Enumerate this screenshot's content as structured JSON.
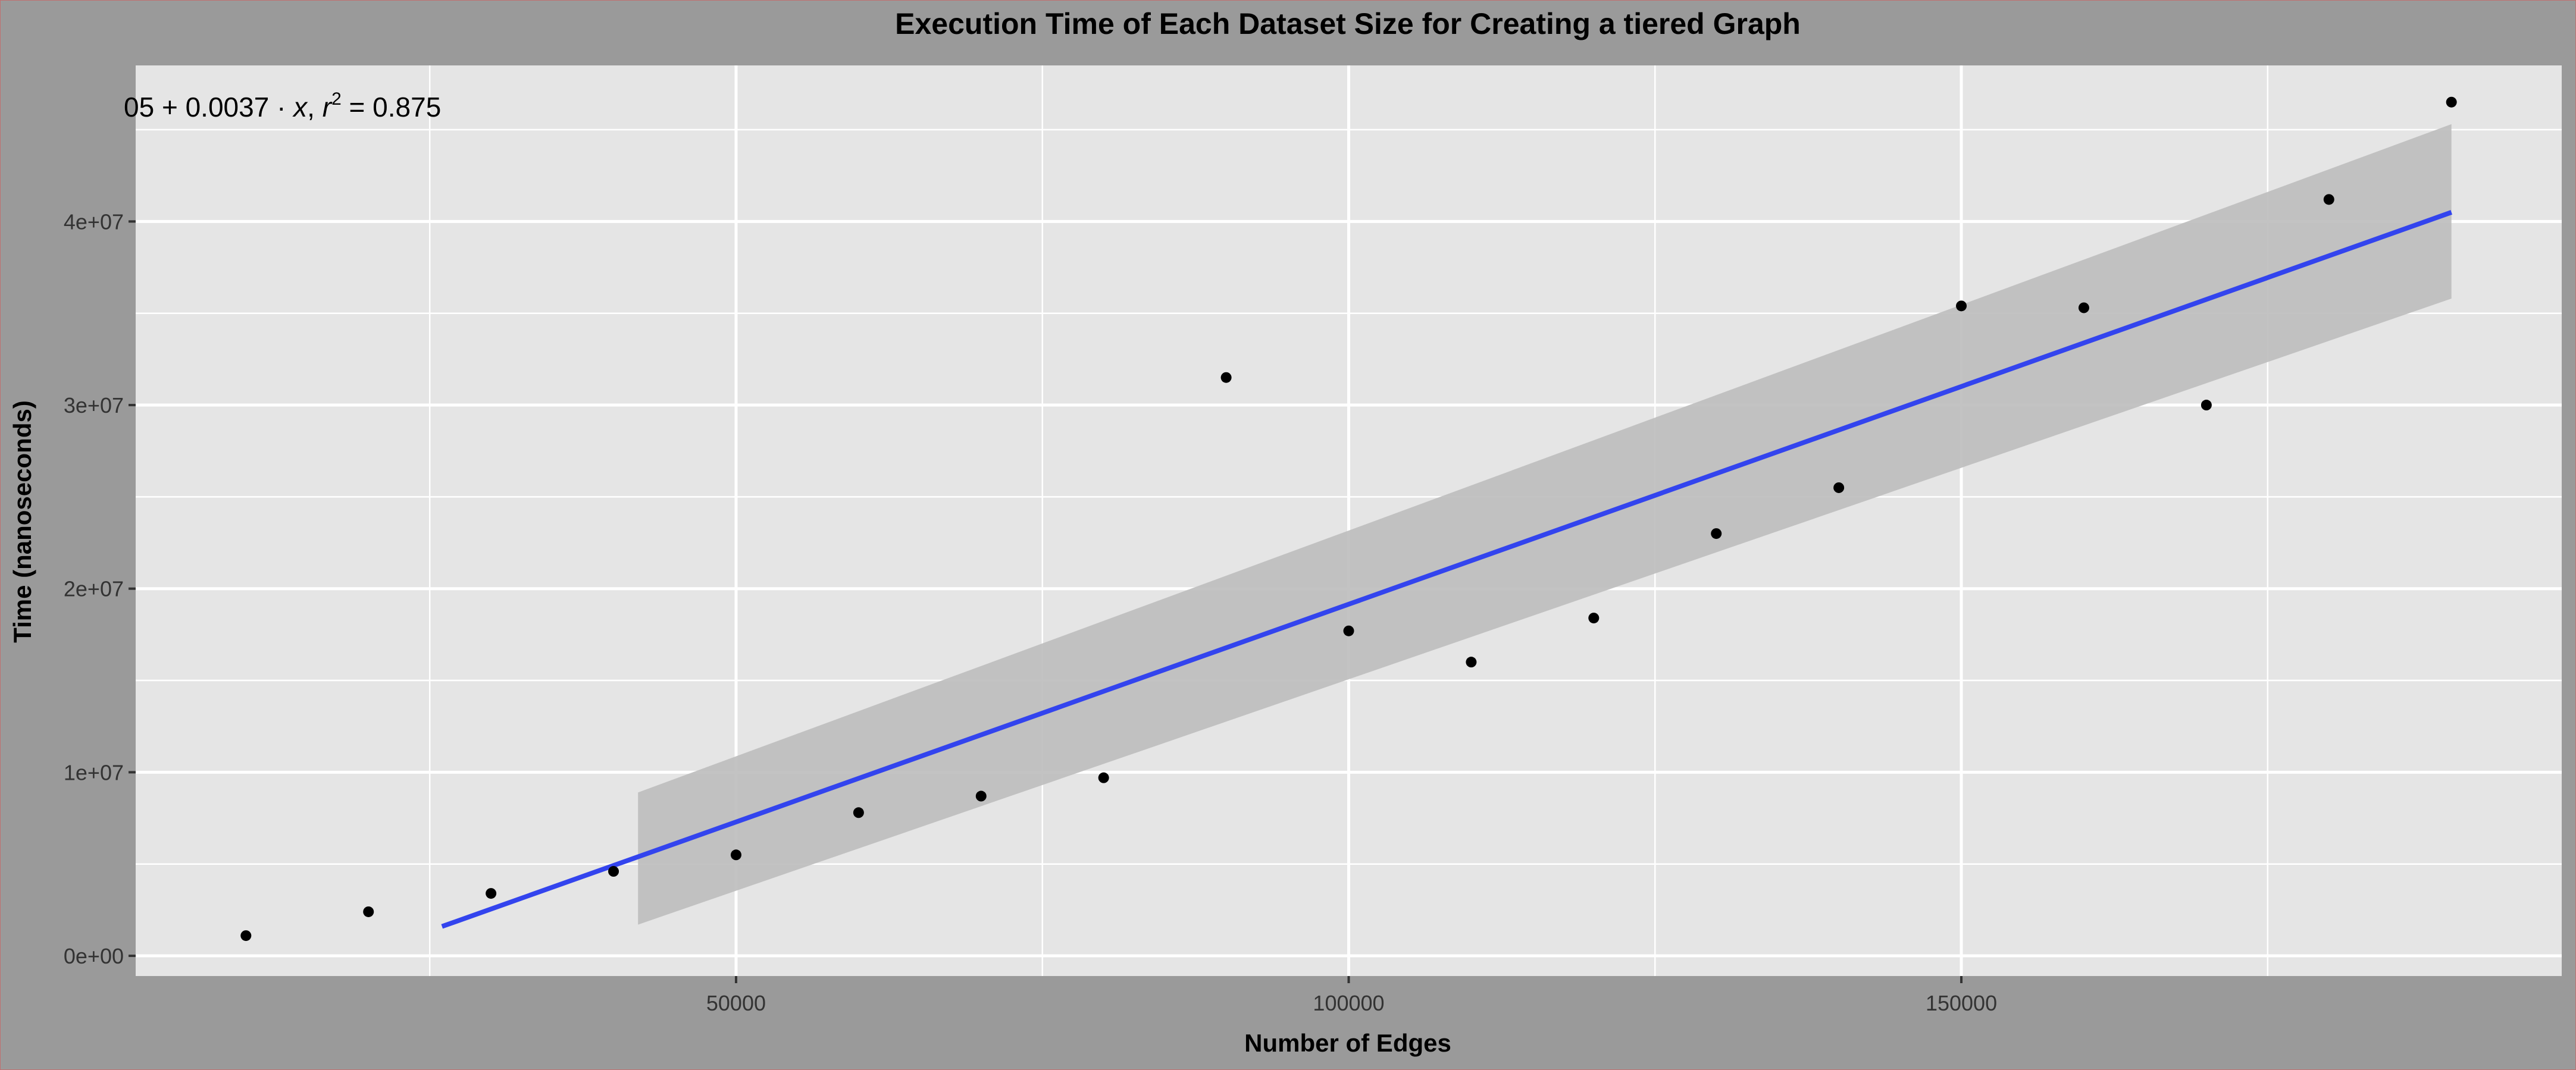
{
  "chart_data": {
    "type": "scatter",
    "title": "Execution Time of Each Dataset Size for Creating a tiered Graph",
    "xlabel": "Number of Edges",
    "ylabel": "Time (nanoseconds)",
    "xlim": [
      1000,
      199000
    ],
    "ylim": [
      -1100000,
      48500000
    ],
    "x_ticks": [
      50000,
      100000,
      150000
    ],
    "x_tick_labels": [
      "50000",
      "100000",
      "150000"
    ],
    "y_ticks": [
      0,
      10000000,
      20000000,
      30000000,
      40000000
    ],
    "y_tick_labels": [
      "0e+00",
      "1e+07",
      "2e+07",
      "3e+07",
      "4e+07"
    ],
    "grid": true,
    "annotation": {
      "text_prefix": "05 + 0.0037 · ",
      "text_var": "x",
      "text_mid": ",  ",
      "r_symbol": "r",
      "r_exp": "2",
      "text_suffix": " = 0.875"
    },
    "series": [
      {
        "type": "scatter",
        "x": [
          10000,
          20000,
          30000,
          40000,
          50000,
          60000,
          70000,
          80000,
          90000,
          100000,
          110000,
          120000,
          130000,
          140000,
          150000,
          160000,
          170000,
          180000,
          190000
        ],
        "y": [
          1100000,
          2400000,
          3400000,
          4600000,
          5500000,
          7800000,
          8700000,
          9700000,
          31500000,
          17700000,
          16000000,
          18400000,
          23000000,
          25500000,
          35400000,
          35300000,
          30000000,
          41200000,
          46500000
        ]
      }
    ],
    "fit": {
      "type": "line",
      "color": "#3344ee",
      "x": [
        26000,
        190000
      ],
      "y": [
        1600000,
        40500000
      ]
    },
    "confidence_band": {
      "color": "#bdbdbd",
      "upper": [
        [
          42000,
          8900000
        ],
        [
          190000,
          45300000
        ]
      ],
      "lower": [
        [
          42000,
          1700000
        ],
        [
          190000,
          35800000
        ]
      ]
    },
    "colors": {
      "panel_bg": "#e5e5e5",
      "outer_bg": "#9a9a9a",
      "grid": "#ffffff",
      "points": "#000000"
    }
  }
}
